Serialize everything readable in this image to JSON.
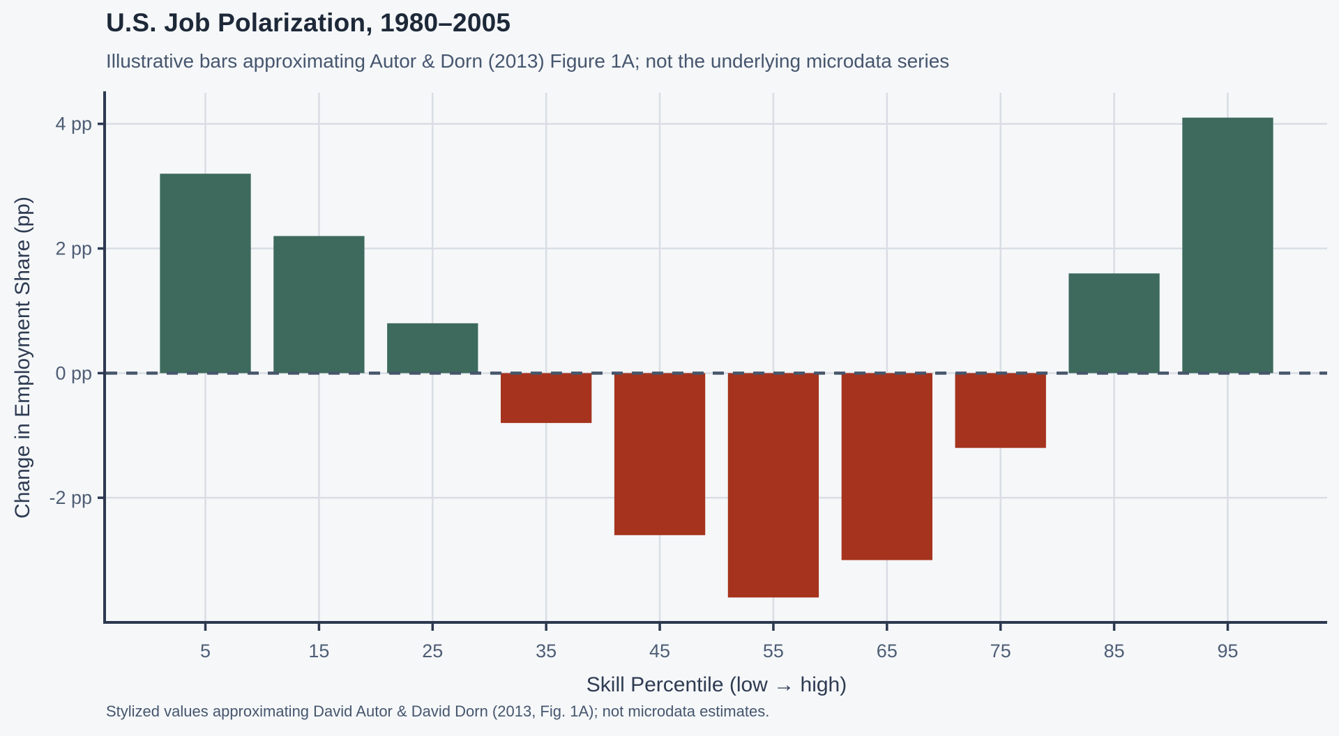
{
  "chart_data": {
    "type": "bar",
    "title": "U.S. Job Polarization, 1980–2005",
    "subtitle": "Illustrative bars approximating Autor & Dorn (2013) Figure 1A; not the underlying microdata series",
    "caption": "Stylized values approximating David Autor & David Dorn (2013, Fig. 1A); not microdata estimates.",
    "xlabel": "Skill Percentile (low → high)",
    "ylabel": "Change in Employment Share (pp)",
    "categories": [
      "5",
      "15",
      "25",
      "35",
      "45",
      "55",
      "65",
      "75",
      "85",
      "95"
    ],
    "values": [
      3.2,
      2.2,
      0.8,
      -0.8,
      -2.6,
      -3.6,
      -3.0,
      -1.2,
      1.6,
      4.1
    ],
    "y_ticks": [
      {
        "value": -2,
        "label": "-2 pp"
      },
      {
        "value": 0,
        "label": "0 pp"
      },
      {
        "value": 2,
        "label": "2 pp"
      },
      {
        "value": 4,
        "label": "4 pp"
      }
    ],
    "ylim": [
      -4.0,
      4.5
    ],
    "zero_line": {
      "value": 0,
      "style": "dashed"
    },
    "grid": "major",
    "legend": false,
    "colors": {
      "positive": "#3d6a5c",
      "negative": "#a5331e",
      "grid": "#d9dee4",
      "axis": "#2d3950",
      "tick_text": "#4e5d74",
      "axis_title": "#2e3b52",
      "title": "#1d2838",
      "subtitle": "#46566e",
      "zero_line": "#47566b",
      "background": "#f5f7f9"
    }
  }
}
